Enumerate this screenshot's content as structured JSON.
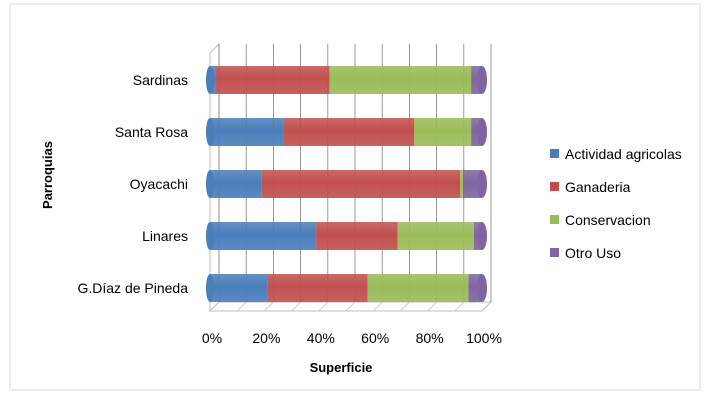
{
  "chart_data": {
    "type": "bar",
    "orientation": "horizontal",
    "stacked": "percent",
    "categories": [
      "Sardinas",
      "Santa Rosa",
      "Oyacachi",
      "Linares",
      "G.Díaz de Pineda"
    ],
    "series": [
      {
        "name": "Actividad agricolas",
        "color": "#4A7EBB",
        "values": [
          2,
          27,
          19,
          39,
          21
        ]
      },
      {
        "name": "Ganaderia",
        "color": "#C0504D",
        "values": [
          42,
          48,
          73,
          30,
          37
        ]
      },
      {
        "name": "Conservacion",
        "color": "#9BBB59",
        "values": [
          52,
          21,
          1,
          28,
          37
        ]
      },
      {
        "name": "Otro Uso",
        "color": "#8064A2",
        "values": [
          4,
          4,
          7,
          3,
          5
        ]
      }
    ],
    "xlabel": "Superficie",
    "ylabel": "Parroquias",
    "xlim": [
      0,
      100
    ],
    "x_ticks": [
      "0%",
      "20%",
      "40%",
      "60%",
      "80%",
      "100%"
    ],
    "grid": true,
    "legend": "right"
  }
}
